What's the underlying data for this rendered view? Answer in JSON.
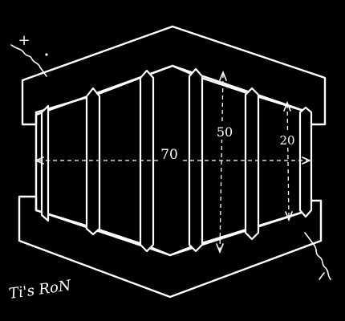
{
  "diagram": {
    "dimensions": {
      "width_label": "70",
      "height_label": "50",
      "inner_label": "20"
    },
    "polarity": {
      "plus_label": "+"
    },
    "signature": "Ti's RoN",
    "colors": {
      "background": "#000000",
      "ink": "#ffffff"
    }
  }
}
